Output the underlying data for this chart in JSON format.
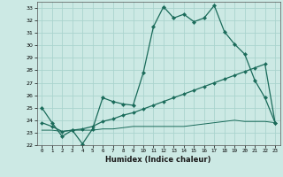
{
  "xlabel": "Humidex (Indice chaleur)",
  "xlim": [
    -0.5,
    23.5
  ],
  "ylim": [
    22,
    33.5
  ],
  "yticks": [
    22,
    23,
    24,
    25,
    26,
    27,
    28,
    29,
    30,
    31,
    32,
    33
  ],
  "xticks": [
    0,
    1,
    2,
    3,
    4,
    5,
    6,
    7,
    8,
    9,
    10,
    11,
    12,
    13,
    14,
    15,
    16,
    17,
    18,
    19,
    20,
    21,
    22,
    23
  ],
  "background_color": "#cce9e4",
  "grid_color": "#aad4ce",
  "line_color": "#1a6b5a",
  "line1_y": [
    25.0,
    23.8,
    22.7,
    23.2,
    22.1,
    23.3,
    25.8,
    25.5,
    25.3,
    25.2,
    27.8,
    31.5,
    33.1,
    32.2,
    32.5,
    31.9,
    32.2,
    33.2,
    31.1,
    30.1,
    29.3,
    27.2,
    25.8,
    23.8
  ],
  "line2_y": [
    23.8,
    23.5,
    23.1,
    23.2,
    23.3,
    23.5,
    23.9,
    24.1,
    24.4,
    24.6,
    24.9,
    25.2,
    25.5,
    25.8,
    26.1,
    26.4,
    26.7,
    27.0,
    27.3,
    27.6,
    27.9,
    28.2,
    28.5,
    23.8
  ],
  "line3_y": [
    23.2,
    23.2,
    23.1,
    23.2,
    23.2,
    23.2,
    23.3,
    23.3,
    23.4,
    23.5,
    23.5,
    23.5,
    23.5,
    23.5,
    23.5,
    23.6,
    23.7,
    23.8,
    23.9,
    24.0,
    23.9,
    23.9,
    23.9,
    23.8
  ]
}
